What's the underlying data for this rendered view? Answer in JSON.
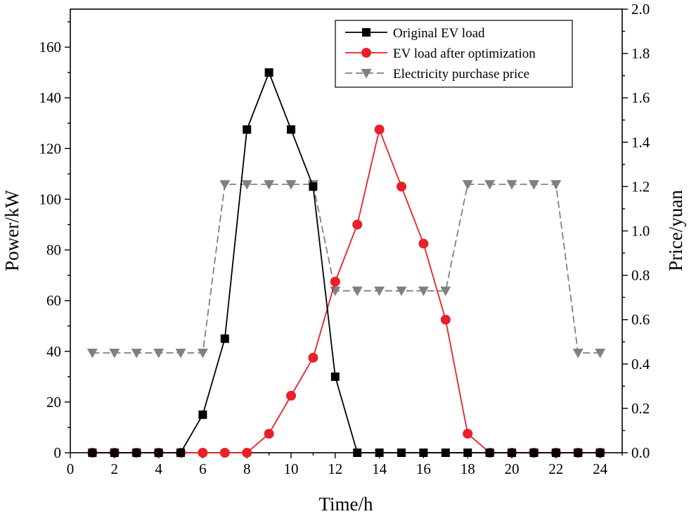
{
  "chart_data": {
    "type": "line",
    "title": "",
    "xlabel": "Time/h",
    "ylabel_left": "Power/kW",
    "ylabel_right": "Price/yuan",
    "xlim": [
      0,
      25
    ],
    "ylim_left": [
      0,
      175
    ],
    "ylim_right": [
      0,
      2.0
    ],
    "x_ticks": [
      0,
      2,
      4,
      6,
      8,
      10,
      12,
      14,
      16,
      18,
      20,
      22,
      24
    ],
    "y_left_ticks": [
      0,
      20,
      40,
      60,
      80,
      100,
      120,
      140,
      160
    ],
    "y_right_ticks": [
      "0.0",
      "0.2",
      "0.4",
      "0.6",
      "0.8",
      "1.0",
      "1.2",
      "1.4",
      "1.6",
      "1.8",
      "2.0"
    ],
    "x": [
      1,
      2,
      3,
      4,
      5,
      6,
      7,
      8,
      9,
      10,
      11,
      12,
      13,
      14,
      15,
      16,
      17,
      18,
      19,
      20,
      21,
      22,
      23,
      24
    ],
    "legend_position": "top-right",
    "series": [
      {
        "name": "Original EV load",
        "axis": "left",
        "color": "#000000",
        "marker": "square",
        "dash": "solid",
        "values": [
          0,
          0,
          0,
          0,
          0,
          15,
          45,
          127.5,
          150,
          127.5,
          105,
          30,
          0,
          0,
          0,
          0,
          0,
          0,
          0,
          0,
          0,
          0,
          0,
          0
        ]
      },
      {
        "name": "EV load after optimization",
        "axis": "left",
        "color": "#e8202a",
        "marker": "circle",
        "dash": "solid",
        "values": [
          0,
          0,
          0,
          0,
          0,
          0,
          0,
          0,
          7.5,
          22.5,
          37.5,
          67.5,
          90,
          127.5,
          105,
          82.5,
          52.5,
          7.5,
          0,
          0,
          0,
          0,
          0,
          0
        ]
      },
      {
        "name": "Electricity purchase price",
        "axis": "right",
        "color": "#808080",
        "marker": "triangle-down",
        "dash": "dashed",
        "values": [
          0.45,
          0.45,
          0.45,
          0.45,
          0.45,
          0.45,
          1.21,
          1.21,
          1.21,
          1.21,
          1.21,
          0.73,
          0.73,
          0.73,
          0.73,
          0.73,
          0.73,
          1.21,
          1.21,
          1.21,
          1.21,
          1.21,
          0.45,
          0.45
        ]
      }
    ]
  }
}
